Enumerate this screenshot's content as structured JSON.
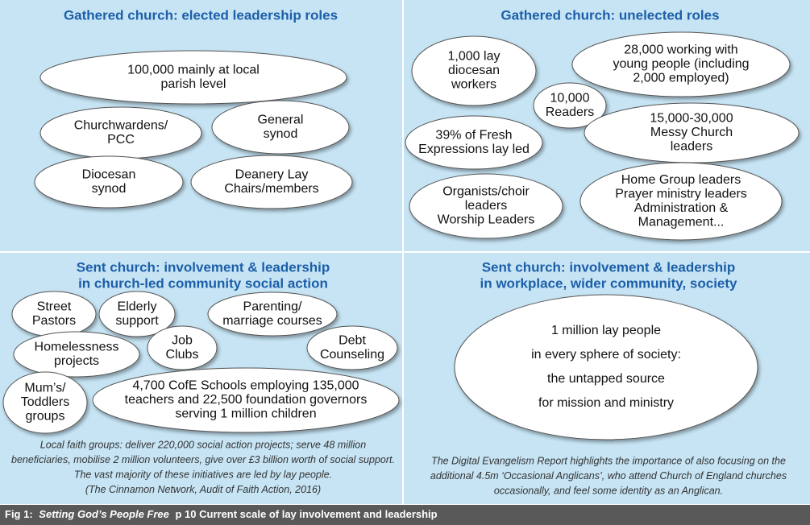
{
  "panels": [
    {
      "title": [
        "Gathered church: elected leadership roles"
      ],
      "bubbles": [
        {
          "lines": [
            "100,000 mainly at local",
            "parish level"
          ]
        },
        {
          "lines": [
            "Churchwardens/",
            "PCC"
          ]
        },
        {
          "lines": [
            "General",
            "synod"
          ]
        },
        {
          "lines": [
            "Diocesan",
            "synod"
          ]
        },
        {
          "lines": [
            "Deanery Lay",
            "Chairs/members"
          ]
        }
      ]
    },
    {
      "title": [
        "Gathered church: unelected roles"
      ],
      "bubbles": [
        {
          "lines": [
            "1,000 lay",
            "diocesan",
            "workers"
          ]
        },
        {
          "lines": [
            "28,000 working with",
            "young people (including",
            "2,000 employed)"
          ]
        },
        {
          "lines": [
            "10,000",
            "Readers"
          ]
        },
        {
          "lines": [
            "39% of Fresh",
            "Expressions lay led"
          ]
        },
        {
          "lines": [
            "15,000-30,000",
            "Messy Church",
            "leaders"
          ]
        },
        {
          "lines": [
            "Organists/choir",
            "leaders",
            "Worship Leaders"
          ]
        },
        {
          "lines": [
            "Home Group leaders",
            "Prayer ministry leaders",
            "Administration &",
            "Management..."
          ]
        }
      ]
    },
    {
      "title": [
        "Sent church: involvement & leadership",
        "in church-led community social action"
      ],
      "bubbles": [
        {
          "lines": [
            "Street",
            "Pastors"
          ]
        },
        {
          "lines": [
            "Elderly",
            "support"
          ]
        },
        {
          "lines": [
            "Parenting/",
            "marriage courses"
          ]
        },
        {
          "lines": [
            "Homelessness",
            "projects"
          ]
        },
        {
          "lines": [
            "Job",
            "Clubs"
          ]
        },
        {
          "lines": [
            "Debt",
            "Counseling"
          ]
        },
        {
          "lines": [
            "Mum’s/",
            "Toddlers",
            "groups"
          ]
        },
        {
          "lines": [
            "4,700 CofE Schools employing 135,000",
            "teachers and 22,500 foundation governors",
            "serving 1 million children"
          ]
        }
      ],
      "note": [
        "Local faith groups: deliver 220,000 social action projects; serve 48 million",
        "beneficiaries, mobilise 2 million volunteers, give over £3 billion worth of social support.",
        "The vast majority of these initiatives are led by lay people.",
        "(The Cinnamon Network, Audit of Faith Action, 2016)"
      ]
    },
    {
      "title": [
        "Sent church: involvement & leadership",
        "in workplace, wider community, society"
      ],
      "bubbles": [
        {
          "lines": [
            "1 million lay people",
            "in every sphere of society:"
          ],
          "highlight": [
            "the untapped source",
            "for mission and ministry"
          ]
        }
      ],
      "note": [
        "The Digital Evangelism Report highlights the importance of also focusing on the",
        "additional 4.5m ‘Occasional Anglicans’, who attend Church of England churches",
        "occasionally, and feel some identity as an Anglican."
      ]
    }
  ],
  "caption": {
    "label": "Fig 1:",
    "title": "Setting God’s People Free",
    "text": "p 10 Current scale of lay involvement and leadership"
  }
}
